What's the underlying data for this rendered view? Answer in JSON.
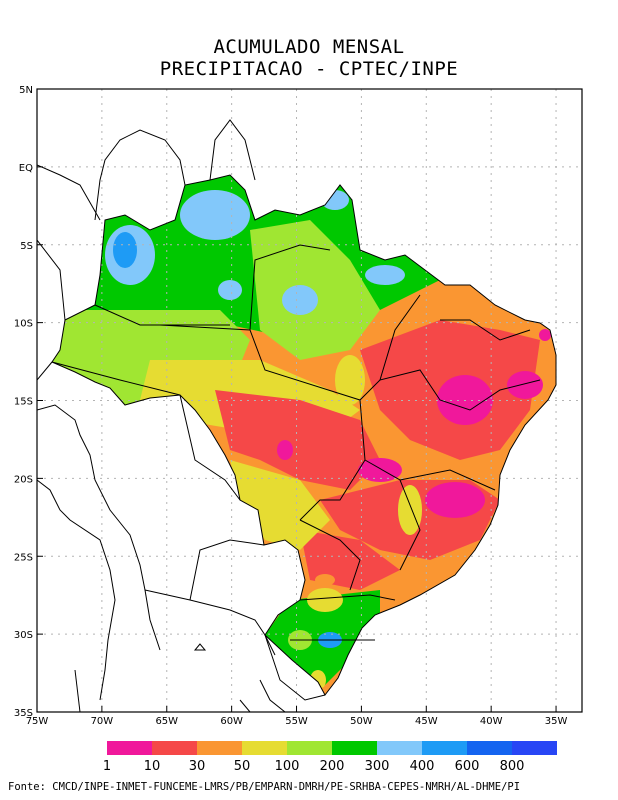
{
  "title_line1": "ACUMULADO MENSAL",
  "title_line2": "PRECIPITACAO - CPTEC/INPE",
  "lat_ticks": [
    {
      "value": 5,
      "label": "5N"
    },
    {
      "value": 0,
      "label": "EQ"
    },
    {
      "value": -5,
      "label": "5S"
    },
    {
      "value": -10,
      "label": "10S"
    },
    {
      "value": -15,
      "label": "15S"
    },
    {
      "value": -20,
      "label": "20S"
    },
    {
      "value": -25,
      "label": "25S"
    },
    {
      "value": -30,
      "label": "30S"
    },
    {
      "value": -35,
      "label": "35S"
    }
  ],
  "lon_ticks": [
    {
      "value": -75,
      "label": "75W"
    },
    {
      "value": -70,
      "label": "70W"
    },
    {
      "value": -65,
      "label": "65W"
    },
    {
      "value": -60,
      "label": "60W"
    },
    {
      "value": -55,
      "label": "55W"
    },
    {
      "value": -50,
      "label": "50W"
    },
    {
      "value": -45,
      "label": "45W"
    },
    {
      "value": -40,
      "label": "40W"
    },
    {
      "value": -35,
      "label": "35W"
    }
  ],
  "colorbar": {
    "colors": [
      "#f0189b",
      "#f54848",
      "#fa9632",
      "#e6dc32",
      "#a0e632",
      "#00c800",
      "#82c8fa",
      "#1e9bf5",
      "#1464f0",
      "#2846f5"
    ],
    "labels": [
      "1",
      "10",
      "30",
      "50",
      "100",
      "200",
      "300",
      "400",
      "600",
      "800"
    ]
  },
  "source_text": "Fonte: CMCD/INPE-INMET-FUNCEME-LMRS/PB/EMPARN-DMRH/PE-SRHBA-CEPES-NMRH/AL-DHME/PI"
}
